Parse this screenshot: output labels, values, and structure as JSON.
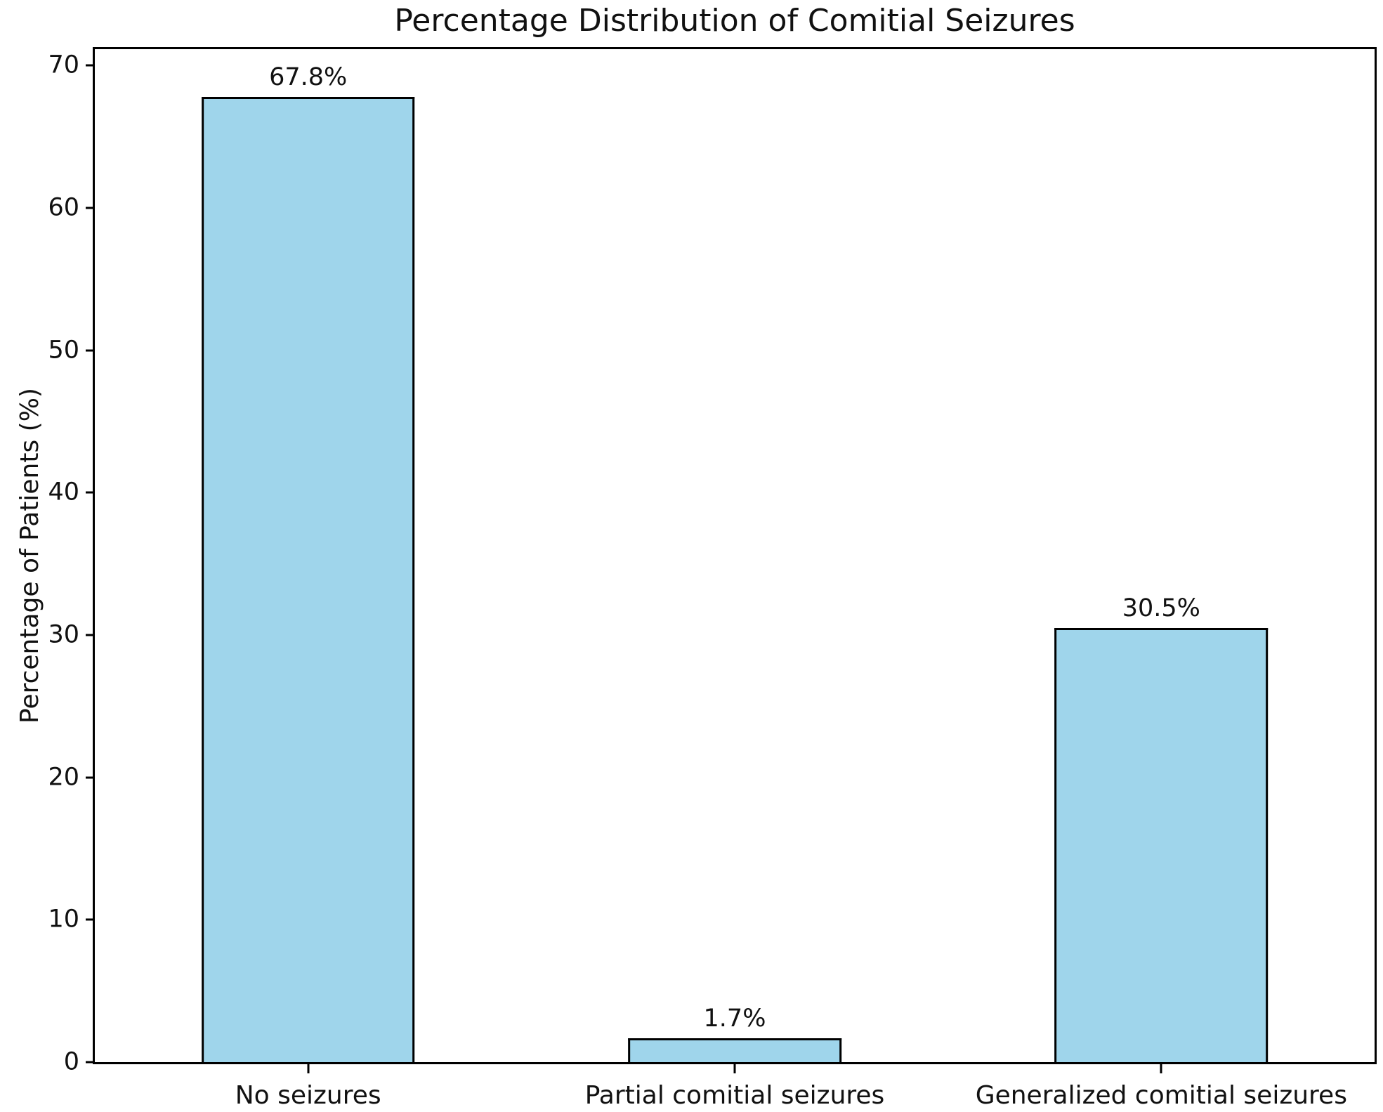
{
  "chart_data": {
    "type": "bar",
    "title": "Percentage Distribution of Comitial Seizures",
    "xlabel": "",
    "ylabel": "Percentage of Patients (%)",
    "categories": [
      "No seizures",
      "Partial comitial seizures",
      "Generalized comitial seizures"
    ],
    "values": [
      67.8,
      1.7,
      30.5
    ],
    "value_labels": [
      "67.8%",
      "1.7%",
      "30.5%"
    ],
    "yticks": [
      0,
      10,
      20,
      30,
      40,
      50,
      60,
      70
    ],
    "ylim": [
      0,
      70
    ],
    "grid": false,
    "legend": null,
    "bar_color": "#9fd5eb",
    "bar_edge_color": "#000000",
    "text_color": "#111111",
    "background_color": "#ffffff"
  }
}
